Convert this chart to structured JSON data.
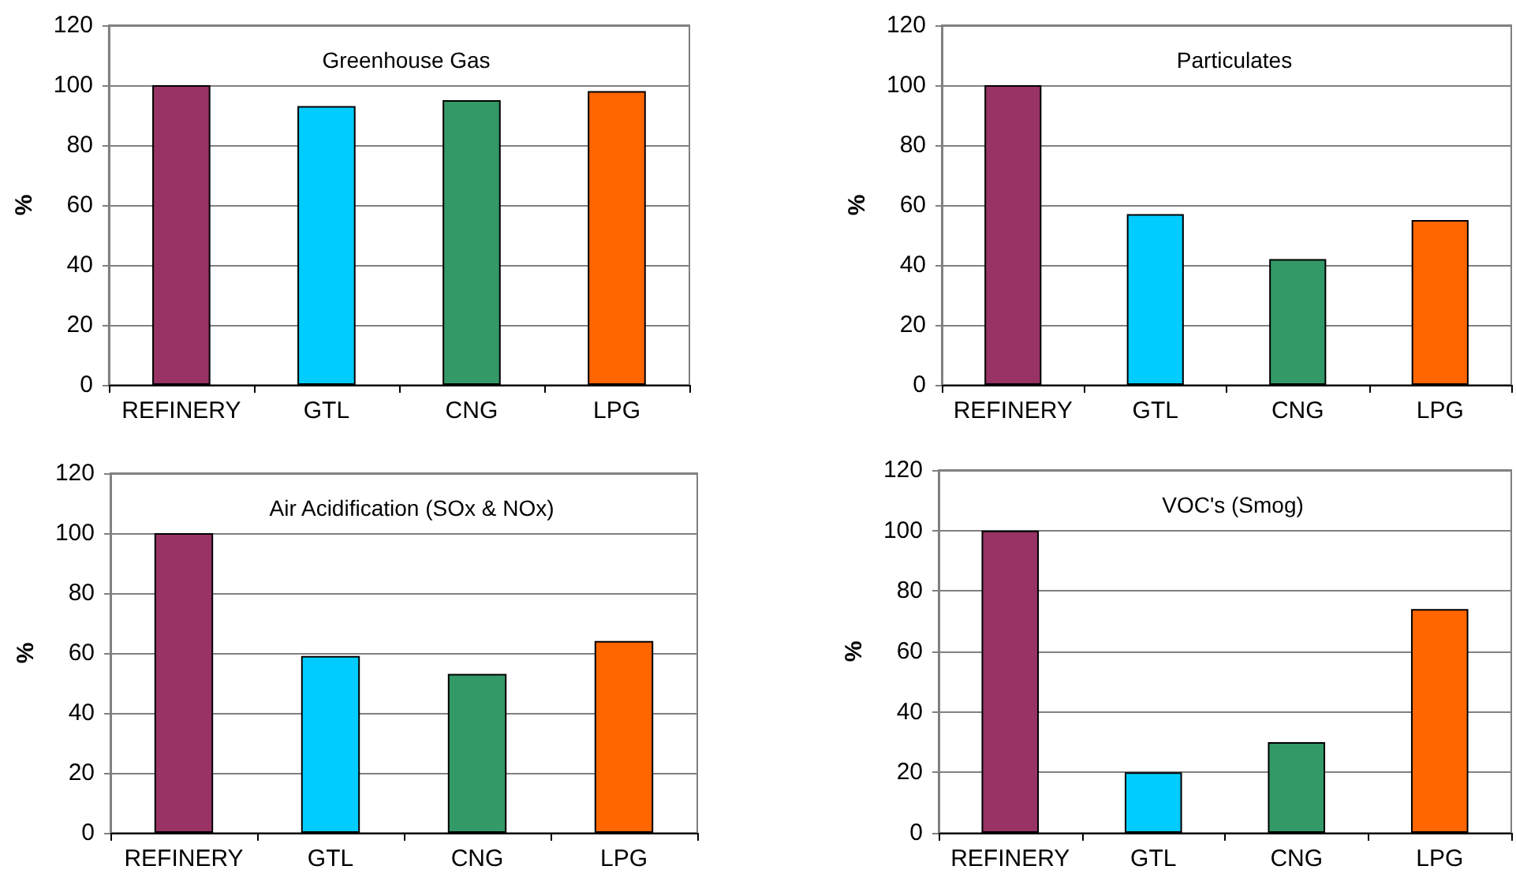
{
  "chart_data": [
    {
      "type": "bar",
      "title": "Greenhouse Gas",
      "ylabel": "%",
      "categories": [
        "REFINERY",
        "GTL",
        "CNG",
        "LPG"
      ],
      "values": [
        100,
        93,
        95,
        98
      ],
      "colors": [
        "#993366",
        "#00ccff",
        "#339966",
        "#ff6600"
      ],
      "ylim": [
        0,
        120
      ],
      "yticks": [
        0,
        20,
        40,
        60,
        80,
        100,
        120
      ],
      "grid": "y"
    },
    {
      "type": "bar",
      "title": "Particulates",
      "ylabel": "%",
      "categories": [
        "REFINERY",
        "GTL",
        "CNG",
        "LPG"
      ],
      "values": [
        100,
        57,
        42,
        55
      ],
      "colors": [
        "#993366",
        "#00ccff",
        "#339966",
        "#ff6600"
      ],
      "ylim": [
        0,
        120
      ],
      "yticks": [
        0,
        20,
        40,
        60,
        80,
        100,
        120
      ],
      "grid": "y"
    },
    {
      "type": "bar",
      "title": "Air Acidification (SOx & NOx)",
      "ylabel": "%",
      "categories": [
        "REFINERY",
        "GTL",
        "CNG",
        "LPG"
      ],
      "values": [
        100,
        59,
        53,
        64
      ],
      "colors": [
        "#993366",
        "#00ccff",
        "#339966",
        "#ff6600"
      ],
      "ylim": [
        0,
        120
      ],
      "yticks": [
        0,
        20,
        40,
        60,
        80,
        100,
        120
      ],
      "grid": "y"
    },
    {
      "type": "bar",
      "title": "VOC's (Smog)",
      "ylabel": "%",
      "categories": [
        "REFINERY",
        "GTL",
        "CNG",
        "LPG"
      ],
      "values": [
        100,
        20,
        30,
        74
      ],
      "colors": [
        "#993366",
        "#00ccff",
        "#339966",
        "#ff6600"
      ],
      "ylim": [
        0,
        120
      ],
      "yticks": [
        0,
        20,
        40,
        60,
        80,
        100,
        120
      ],
      "grid": "y"
    }
  ]
}
